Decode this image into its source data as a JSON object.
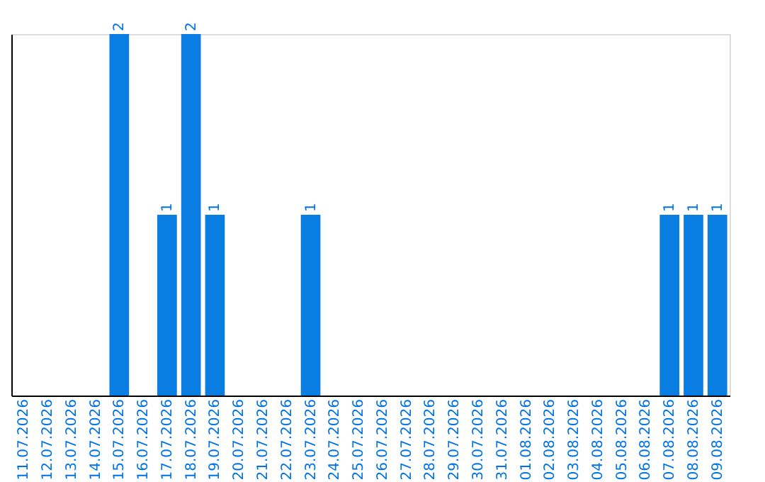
{
  "chart_data": {
    "type": "bar",
    "categories": [
      "11.07.2026",
      "12.07.2026",
      "13.07.2026",
      "14.07.2026",
      "15.07.2026",
      "16.07.2026",
      "17.07.2026",
      "18.07.2026",
      "19.07.2026",
      "20.07.2026",
      "21.07.2026",
      "22.07.2026",
      "23.07.2026",
      "24.07.2026",
      "25.07.2026",
      "26.07.2026",
      "27.07.2026",
      "28.07.2026",
      "29.07.2026",
      "30.07.2026",
      "31.07.2026",
      "01.08.2026",
      "02.08.2026",
      "03.08.2026",
      "04.08.2026",
      "05.08.2026",
      "06.08.2026",
      "07.08.2026",
      "08.08.2026",
      "09.08.2026"
    ],
    "values": [
      0,
      0,
      0,
      0,
      2,
      0,
      1,
      2,
      1,
      0,
      0,
      0,
      1,
      0,
      0,
      0,
      0,
      0,
      0,
      0,
      0,
      0,
      0,
      0,
      0,
      0,
      0,
      1,
      1,
      1
    ],
    "value_labels": [
      null,
      null,
      null,
      null,
      "2",
      null,
      "1",
      "2",
      "1",
      null,
      null,
      null,
      "1",
      null,
      null,
      null,
      null,
      null,
      null,
      null,
      null,
      null,
      null,
      null,
      null,
      null,
      null,
      "1",
      "1",
      "1"
    ],
    "color": "#0a7de3",
    "ylim": [
      0,
      2
    ],
    "tick_labels": "x",
    "grid": false
  }
}
